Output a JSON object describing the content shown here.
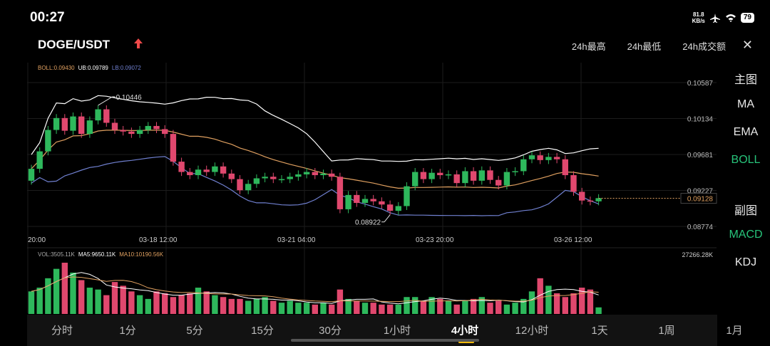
{
  "status_bar": {
    "time": "00:27",
    "net_speed": "81.8",
    "net_unit": "KB/s",
    "battery": "79"
  },
  "header": {
    "pair": "DOGE/USDT",
    "stats": [
      "24h最高",
      "24h最低",
      "24h成交额"
    ]
  },
  "legend": {
    "boll": "BOLL:0.09430",
    "ub": "UB:0.09789",
    "lb": "LB:0.09072",
    "vol": "VOL:3505.11K",
    "ma5": "MA5:9650.11K",
    "ma10": "MA10:10190.56K",
    "vol_max": "27266.28K"
  },
  "price_axis": {
    "labels": [
      "0.10587",
      "0.10134",
      "0.09681",
      "0.09227",
      "0.08774"
    ],
    "current": "0.09128"
  },
  "annotations": {
    "high": "0.10446",
    "low": "0.08922"
  },
  "time_axis": [
    "20:00",
    "03-18 12:00",
    "03-21 04:00",
    "03-23 20:00",
    "03-26 12:00"
  ],
  "side_menu": [
    {
      "label": "主图",
      "active": false
    },
    {
      "label": "MA",
      "active": false
    },
    {
      "label": "EMA",
      "active": false
    },
    {
      "label": "BOLL",
      "active": true
    },
    {
      "label": "副图",
      "active": false
    },
    {
      "label": "MACD",
      "active": true
    },
    {
      "label": "KDJ",
      "active": false
    }
  ],
  "timeframes": [
    {
      "label": "分时",
      "active": false
    },
    {
      "label": "1分",
      "active": false
    },
    {
      "label": "5分",
      "active": false
    },
    {
      "label": "15分",
      "active": false
    },
    {
      "label": "30分",
      "active": false
    },
    {
      "label": "1小时",
      "active": false
    },
    {
      "label": "4小时",
      "active": true
    },
    {
      "label": "12小时",
      "active": false
    },
    {
      "label": "1天",
      "active": false
    },
    {
      "label": "1周",
      "active": false
    },
    {
      "label": "1月",
      "active": false
    }
  ],
  "colors": {
    "up": "#2eb85c",
    "down": "#e0486e",
    "boll_mid": "#e0a060",
    "boll_ub": "#ffffff",
    "boll_lb": "#7080d0",
    "accent": "#27c37a"
  },
  "chart_data": {
    "type": "candlestick",
    "price_range": [
      0.08774,
      0.10587
    ],
    "candles": [
      [
        0.0935,
        0.095
      ],
      [
        0.095,
        0.0972
      ],
      [
        0.0972,
        0.0999
      ],
      [
        0.0999,
        0.1014
      ],
      [
        0.1014,
        0.0998
      ],
      [
        0.0998,
        0.1016
      ],
      [
        0.1016,
        0.0994
      ],
      [
        0.0994,
        0.1011
      ],
      [
        0.1011,
        0.1025
      ],
      [
        0.1025,
        0.1008
      ],
      [
        0.1008,
        0.0999
      ],
      [
        0.0999,
        0.0997
      ],
      [
        0.0997,
        0.0994
      ],
      [
        0.0994,
        0.0999
      ],
      [
        0.0999,
        0.1004
      ],
      [
        0.1004,
        0.1
      ],
      [
        0.1,
        0.0994
      ],
      [
        0.0994,
        0.0959
      ],
      [
        0.0959,
        0.0946
      ],
      [
        0.0946,
        0.0942
      ],
      [
        0.0942,
        0.0949
      ],
      [
        0.0949,
        0.0946
      ],
      [
        0.0946,
        0.0953
      ],
      [
        0.0953,
        0.0944
      ],
      [
        0.0944,
        0.0937
      ],
      [
        0.0937,
        0.0923
      ],
      [
        0.0923,
        0.0931
      ],
      [
        0.0931,
        0.0938
      ],
      [
        0.0938,
        0.094
      ],
      [
        0.094,
        0.0937
      ],
      [
        0.0937,
        0.0937
      ],
      [
        0.0937,
        0.094
      ],
      [
        0.094,
        0.0943
      ],
      [
        0.0943,
        0.0946
      ],
      [
        0.0946,
        0.0942
      ],
      [
        0.0942,
        0.0944
      ],
      [
        0.0944,
        0.094
      ],
      [
        0.094,
        0.0899
      ],
      [
        0.0899,
        0.0917
      ],
      [
        0.0917,
        0.0907
      ],
      [
        0.0907,
        0.0912
      ],
      [
        0.0912,
        0.0909
      ],
      [
        0.0909,
        0.0905
      ],
      [
        0.0905,
        0.0897
      ],
      [
        0.0897,
        0.0903
      ],
      [
        0.0903,
        0.0928
      ],
      [
        0.0928,
        0.0946
      ],
      [
        0.0946,
        0.0937
      ],
      [
        0.0937,
        0.0945
      ],
      [
        0.0945,
        0.0942
      ],
      [
        0.0942,
        0.0943
      ],
      [
        0.0943,
        0.0932
      ],
      [
        0.0932,
        0.0947
      ],
      [
        0.0947,
        0.0935
      ],
      [
        0.0935,
        0.0948
      ],
      [
        0.0948,
        0.0936
      ],
      [
        0.0936,
        0.0929
      ],
      [
        0.0929,
        0.0946
      ],
      [
        0.0946,
        0.0947
      ],
      [
        0.0947,
        0.0962
      ],
      [
        0.0962,
        0.0967
      ],
      [
        0.0967,
        0.0961
      ],
      [
        0.0961,
        0.0965
      ],
      [
        0.0965,
        0.0962
      ],
      [
        0.0962,
        0.0942
      ],
      [
        0.0942,
        0.0921
      ],
      [
        0.0921,
        0.091
      ],
      [
        0.091,
        0.0909
      ],
      [
        0.0909,
        0.0913
      ]
    ],
    "volume": [
      12000,
      14000,
      19000,
      24000,
      27266,
      22000,
      18000,
      14000,
      13000,
      10000,
      17000,
      15000,
      12000,
      10000,
      8000,
      12000,
      11000,
      9000,
      10000,
      11000,
      14000,
      12000,
      10000,
      9000,
      8000,
      8000,
      7000,
      8000,
      9000,
      7000,
      6000,
      7000,
      6000,
      6000,
      5000,
      6000,
      5000,
      13000,
      8000,
      7000,
      6000,
      6000,
      5000,
      5000,
      5000,
      9000,
      9000,
      7000,
      9000,
      8000,
      7000,
      5000,
      7000,
      8000,
      9000,
      6000,
      7000,
      5000,
      6000,
      8000,
      12000,
      19000,
      15000,
      11000,
      9000,
      11000,
      14000,
      13000,
      3505
    ]
  }
}
